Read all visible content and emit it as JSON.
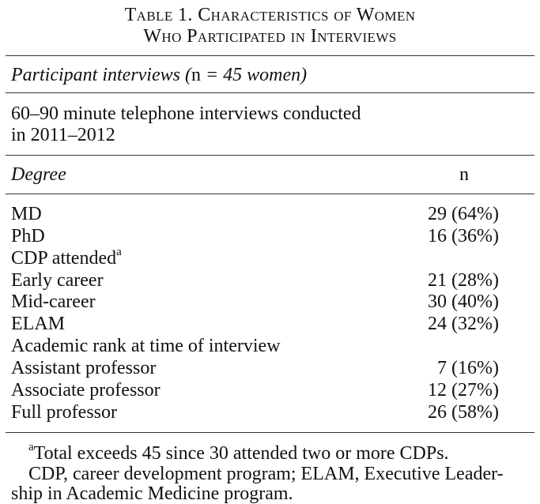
{
  "title": {
    "line1": "Table 1. Characteristics of Women",
    "line2": "Who Participated in Interviews"
  },
  "section": {
    "label_pre": "Participant interviews (",
    "label_n": "n",
    "label_post": " = 45 women)"
  },
  "description": {
    "line1": "60–90 minute telephone interviews conducted",
    "line2": "in 2011–2012"
  },
  "header": {
    "degree": "Degree",
    "n": "n"
  },
  "rows": [
    {
      "label": "MD",
      "value": "29 (64%)"
    },
    {
      "label": "PhD",
      "value": "16 (36%)"
    },
    {
      "label": "CDP attended",
      "value": "",
      "sup": "a"
    },
    {
      "label": "Early career",
      "value": "21 (28%)"
    },
    {
      "label": "Mid-career",
      "value": "30 (40%)"
    },
    {
      "label": "ELAM",
      "value": "24 (32%)"
    },
    {
      "label": "Academic rank at time of interview",
      "value": ""
    },
    {
      "label": "Assistant professor",
      "value": " 7 (16%)"
    },
    {
      "label": "Associate professor",
      "value": "12 (27%)"
    },
    {
      "label": "Full professor",
      "value": "26 (58%)"
    }
  ],
  "footnotes": {
    "a_marker": "a",
    "a_text": "Total exceeds 45 since 30 attended two or more CDPs.",
    "abbrev_line1": "CDP, career development program; ELAM, Executive Leader-",
    "abbrev_line2": "ship in Academic Medicine program."
  }
}
